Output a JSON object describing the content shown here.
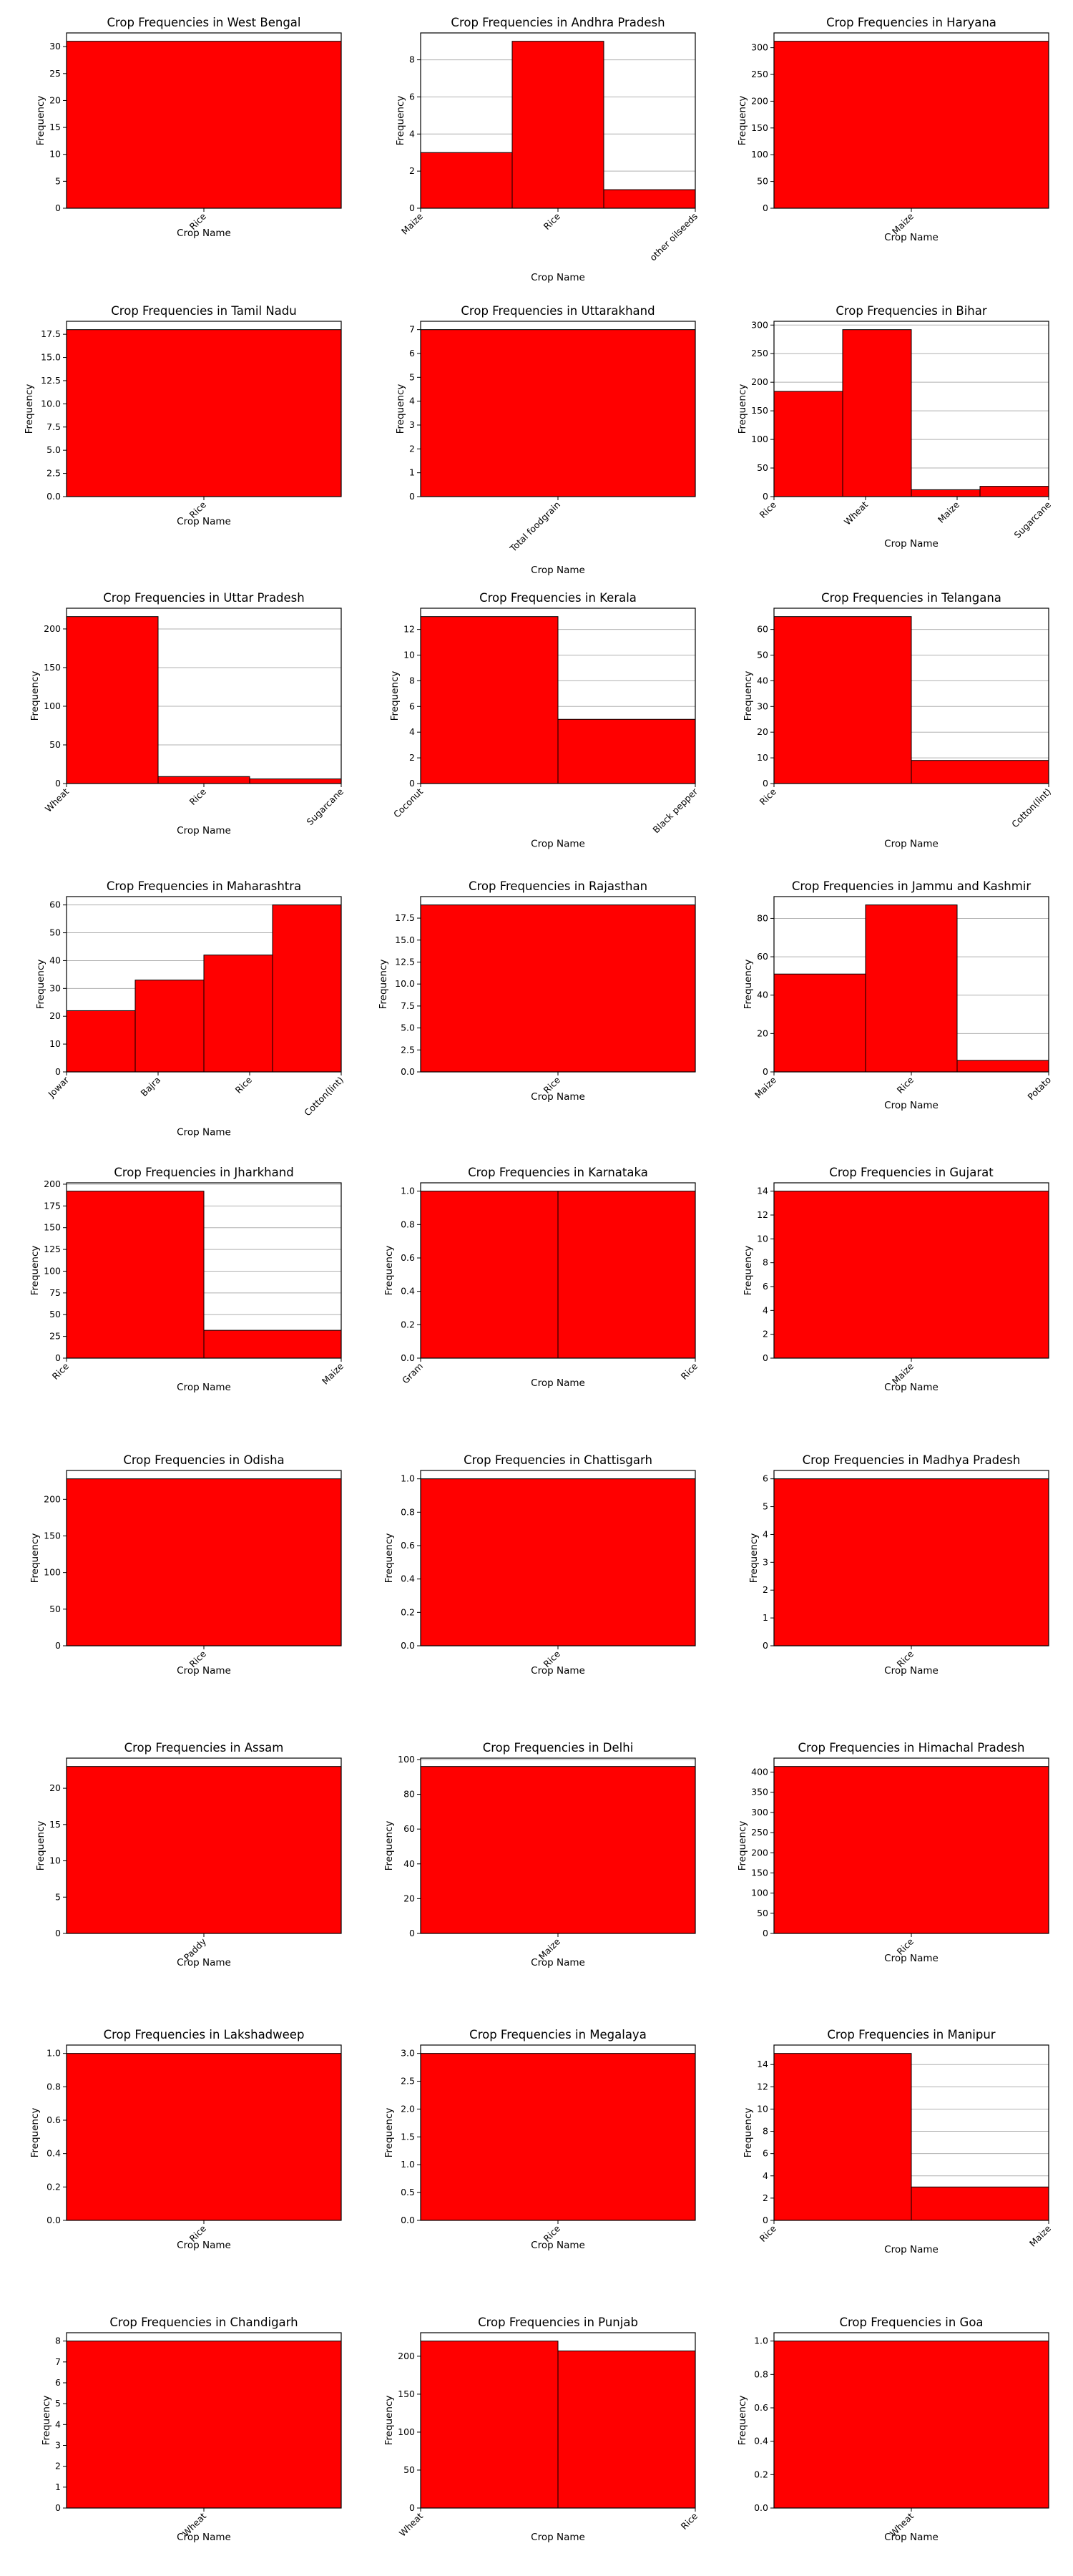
{
  "figure": {
    "bar_color": "#ff0000",
    "bar_edge_color": "#000000",
    "grid_color": "#b0b0b0"
  },
  "chart_data": [
    {
      "type": "bar",
      "title": "Crop Frequencies in West Bengal",
      "xlabel": "Crop Name",
      "ylabel": "Frequency",
      "categories": [
        "Rice"
      ],
      "values": [
        31
      ],
      "ylim": [
        0,
        32.55
      ],
      "yticks": [
        0,
        5,
        10,
        15,
        20,
        25,
        30
      ],
      "tick_decimals": 0,
      "grid": "y"
    },
    {
      "type": "bar",
      "title": "Crop Frequencies in Andhra Pradesh",
      "xlabel": "Crop Name",
      "ylabel": "Frequency",
      "categories": [
        "Maize",
        "Rice",
        "other oilseeds"
      ],
      "values": [
        3,
        9,
        1
      ],
      "ylim": [
        0,
        9.45
      ],
      "yticks": [
        0,
        2,
        4,
        6,
        8
      ],
      "tick_decimals": 0,
      "grid": "y"
    },
    {
      "type": "bar",
      "title": "Crop Frequencies in Haryana",
      "xlabel": "Crop Name",
      "ylabel": "Frequency",
      "categories": [
        "Maize"
      ],
      "values": [
        312
      ],
      "ylim": [
        0,
        327.6
      ],
      "yticks": [
        0,
        50,
        100,
        150,
        200,
        250,
        300
      ],
      "tick_decimals": 0,
      "grid": "y"
    },
    {
      "type": "bar",
      "title": "Crop Frequencies in Tamil Nadu",
      "xlabel": "Crop Name",
      "ylabel": "Frequency",
      "categories": [
        "Rice"
      ],
      "values": [
        18
      ],
      "ylim": [
        0,
        18.9
      ],
      "yticks": [
        0,
        2.5,
        5,
        7.5,
        10,
        12.5,
        15,
        17.5
      ],
      "tick_decimals": 1,
      "grid": "y"
    },
    {
      "type": "bar",
      "title": "Crop Frequencies in Uttarakhand",
      "xlabel": "Crop Name",
      "ylabel": "Frequency",
      "categories": [
        "Total foodgrain"
      ],
      "values": [
        7
      ],
      "ylim": [
        0,
        7.35
      ],
      "yticks": [
        0,
        1,
        2,
        3,
        4,
        5,
        6,
        7
      ],
      "tick_decimals": 0,
      "grid": "y"
    },
    {
      "type": "bar",
      "title": "Crop Frequencies in Bihar",
      "xlabel": "Crop Name",
      "ylabel": "Frequency",
      "categories": [
        "Rice",
        "Wheat",
        "Maize",
        "Sugarcane"
      ],
      "values": [
        184,
        292,
        12,
        18
      ],
      "ylim": [
        0,
        306.6
      ],
      "yticks": [
        0,
        50,
        100,
        150,
        200,
        250,
        300
      ],
      "tick_decimals": 0,
      "grid": "y"
    },
    {
      "type": "bar",
      "title": "Crop Frequencies in Uttar Pradesh",
      "xlabel": "Crop Name",
      "ylabel": "Frequency",
      "categories": [
        "Wheat",
        "Rice",
        "Sugarcane"
      ],
      "values": [
        216,
        9,
        6
      ],
      "ylim": [
        0,
        226.8
      ],
      "yticks": [
        0,
        50,
        100,
        150,
        200
      ],
      "tick_decimals": 0,
      "grid": "y"
    },
    {
      "type": "bar",
      "title": "Crop Frequencies in Kerala",
      "xlabel": "Crop Name",
      "ylabel": "Frequency",
      "categories": [
        "Coconut",
        "Black pepper"
      ],
      "values": [
        13,
        5
      ],
      "ylim": [
        0,
        13.65
      ],
      "yticks": [
        0,
        2,
        4,
        6,
        8,
        10,
        12
      ],
      "tick_decimals": 0,
      "grid": "y"
    },
    {
      "type": "bar",
      "title": "Crop Frequencies in Telangana",
      "xlabel": "Crop Name",
      "ylabel": "Frequency",
      "categories": [
        "Rice",
        "Cotton(lint)"
      ],
      "values": [
        65,
        9
      ],
      "ylim": [
        0,
        68.25
      ],
      "yticks": [
        0,
        10,
        20,
        30,
        40,
        50,
        60
      ],
      "tick_decimals": 0,
      "grid": "y"
    },
    {
      "type": "bar",
      "title": "Crop Frequencies in Maharashtra",
      "xlabel": "Crop Name",
      "ylabel": "Frequency",
      "categories": [
        "Jowar",
        "Bajra",
        "Rice",
        "Cotton(lint)"
      ],
      "values": [
        22,
        33,
        42,
        60
      ],
      "ylim": [
        0,
        63
      ],
      "yticks": [
        0,
        10,
        20,
        30,
        40,
        50,
        60
      ],
      "tick_decimals": 0,
      "grid": "y"
    },
    {
      "type": "bar",
      "title": "Crop Frequencies in Rajasthan",
      "xlabel": "Crop Name",
      "ylabel": "Frequency",
      "categories": [
        "Rice"
      ],
      "values": [
        19
      ],
      "ylim": [
        0,
        19.95
      ],
      "yticks": [
        0,
        2.5,
        5,
        7.5,
        10,
        12.5,
        15,
        17.5
      ],
      "tick_decimals": 1,
      "grid": "y"
    },
    {
      "type": "bar",
      "title": "Crop Frequencies in Jammu and Kashmir",
      "xlabel": "Crop Name",
      "ylabel": "Frequency",
      "categories": [
        "Maize",
        "Rice",
        "Potato"
      ],
      "values": [
        51,
        87,
        6
      ],
      "ylim": [
        0,
        91.35
      ],
      "yticks": [
        0,
        20,
        40,
        60,
        80
      ],
      "tick_decimals": 0,
      "grid": "y"
    },
    {
      "type": "bar",
      "title": "Crop Frequencies in Jharkhand",
      "xlabel": "Crop Name",
      "ylabel": "Frequency",
      "categories": [
        "Rice",
        "Maize"
      ],
      "values": [
        192,
        32
      ],
      "ylim": [
        0,
        201.6
      ],
      "yticks": [
        0,
        25,
        50,
        75,
        100,
        125,
        150,
        175,
        200
      ],
      "tick_decimals": 0,
      "grid": "y"
    },
    {
      "type": "bar",
      "title": "Crop Frequencies in Karnataka",
      "xlabel": "Crop Name",
      "ylabel": "Frequency",
      "categories": [
        "Gram",
        "Rice"
      ],
      "values": [
        1,
        1
      ],
      "ylim": [
        0,
        1.05
      ],
      "yticks": [
        0,
        0.2,
        0.4,
        0.6,
        0.8,
        1.0
      ],
      "tick_decimals": 1,
      "grid": "y"
    },
    {
      "type": "bar",
      "title": "Crop Frequencies in Gujarat",
      "xlabel": "Crop Name",
      "ylabel": "Frequency",
      "categories": [
        "Maize"
      ],
      "values": [
        14
      ],
      "ylim": [
        0,
        14.7
      ],
      "yticks": [
        0,
        2,
        4,
        6,
        8,
        10,
        12,
        14
      ],
      "tick_decimals": 0,
      "grid": "y"
    },
    {
      "type": "bar",
      "title": "Crop Frequencies in Odisha",
      "xlabel": "Crop Name",
      "ylabel": "Frequency",
      "categories": [
        "Rice"
      ],
      "values": [
        228
      ],
      "ylim": [
        0,
        239.4
      ],
      "yticks": [
        0,
        50,
        100,
        150,
        200
      ],
      "tick_decimals": 0,
      "grid": "y"
    },
    {
      "type": "bar",
      "title": "Crop Frequencies in Chattisgarh",
      "xlabel": "Crop Name",
      "ylabel": "Frequency",
      "categories": [
        "Rice"
      ],
      "values": [
        1
      ],
      "ylim": [
        0,
        1.05
      ],
      "yticks": [
        0,
        0.2,
        0.4,
        0.6,
        0.8,
        1.0
      ],
      "tick_decimals": 1,
      "grid": "y"
    },
    {
      "type": "bar",
      "title": "Crop Frequencies in Madhya Pradesh",
      "xlabel": "Crop Name",
      "ylabel": "Frequency",
      "categories": [
        "Rice"
      ],
      "values": [
        6
      ],
      "ylim": [
        0,
        6.3
      ],
      "yticks": [
        0,
        1,
        2,
        3,
        4,
        5,
        6
      ],
      "tick_decimals": 0,
      "grid": "y"
    },
    {
      "type": "bar",
      "title": "Crop Frequencies in Assam",
      "xlabel": "Crop Name",
      "ylabel": "Frequency",
      "categories": [
        "Paddy"
      ],
      "values": [
        23
      ],
      "ylim": [
        0,
        24.15
      ],
      "yticks": [
        0,
        5,
        10,
        15,
        20
      ],
      "tick_decimals": 0,
      "grid": "y"
    },
    {
      "type": "bar",
      "title": "Crop Frequencies in Delhi",
      "xlabel": "Crop Name",
      "ylabel": "Frequency",
      "categories": [
        "Maize"
      ],
      "values": [
        96
      ],
      "ylim": [
        0,
        100.8
      ],
      "yticks": [
        0,
        20,
        40,
        60,
        80,
        100
      ],
      "tick_decimals": 0,
      "grid": "y"
    },
    {
      "type": "bar",
      "title": "Crop Frequencies in Himachal Pradesh",
      "xlabel": "Crop Name",
      "ylabel": "Frequency",
      "categories": [
        "Rice"
      ],
      "values": [
        414
      ],
      "ylim": [
        0,
        434.7
      ],
      "yticks": [
        0,
        50,
        100,
        150,
        200,
        250,
        300,
        350,
        400
      ],
      "tick_decimals": 0,
      "grid": "y"
    },
    {
      "type": "bar",
      "title": "Crop Frequencies in Lakshadweep",
      "xlabel": "Crop Name",
      "ylabel": "Frequency",
      "categories": [
        "Rice"
      ],
      "values": [
        1
      ],
      "ylim": [
        0,
        1.05
      ],
      "yticks": [
        0,
        0.2,
        0.4,
        0.6,
        0.8,
        1.0
      ],
      "tick_decimals": 1,
      "grid": "y"
    },
    {
      "type": "bar",
      "title": "Crop Frequencies in Megalaya",
      "xlabel": "Crop Name",
      "ylabel": "Frequency",
      "categories": [
        "Rice"
      ],
      "values": [
        3
      ],
      "ylim": [
        0,
        3.15
      ],
      "yticks": [
        0,
        0.5,
        1,
        1.5,
        2,
        2.5,
        3
      ],
      "tick_decimals": 1,
      "grid": "y"
    },
    {
      "type": "bar",
      "title": "Crop Frequencies in Manipur",
      "xlabel": "Crop Name",
      "ylabel": "Frequency",
      "categories": [
        "Rice",
        "Maize"
      ],
      "values": [
        15,
        3
      ],
      "ylim": [
        0,
        15.75
      ],
      "yticks": [
        0,
        2,
        4,
        6,
        8,
        10,
        12,
        14
      ],
      "tick_decimals": 0,
      "grid": "y"
    },
    {
      "type": "bar",
      "title": "Crop Frequencies in Chandigarh",
      "xlabel": "Crop Name",
      "ylabel": "Frequency",
      "categories": [
        "Wheat"
      ],
      "values": [
        8
      ],
      "ylim": [
        0,
        8.4
      ],
      "yticks": [
        0,
        1,
        2,
        3,
        4,
        5,
        6,
        7,
        8
      ],
      "tick_decimals": 0,
      "grid": "y"
    },
    {
      "type": "bar",
      "title": "Crop Frequencies in Punjab",
      "xlabel": "Crop Name",
      "ylabel": "Frequency",
      "categories": [
        "Wheat",
        "Rice"
      ],
      "values": [
        220,
        207
      ],
      "ylim": [
        0,
        231
      ],
      "yticks": [
        0,
        50,
        100,
        150,
        200
      ],
      "tick_decimals": 0,
      "grid": "y"
    },
    {
      "type": "bar",
      "title": "Crop Frequencies in Goa",
      "xlabel": "Crop Name",
      "ylabel": "Frequency",
      "categories": [
        "Wheat"
      ],
      "values": [
        1
      ],
      "ylim": [
        0,
        1.05
      ],
      "yticks": [
        0,
        0.2,
        0.4,
        0.6,
        0.8,
        1.0
      ],
      "tick_decimals": 1,
      "grid": "y"
    }
  ]
}
